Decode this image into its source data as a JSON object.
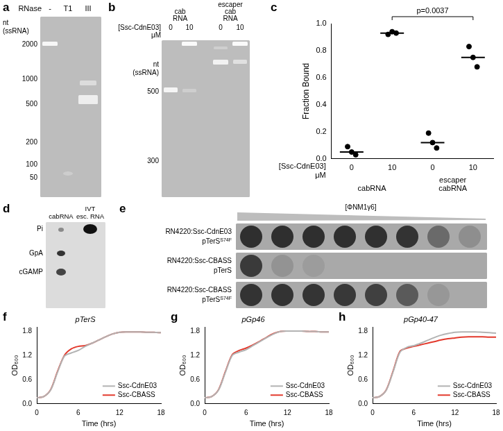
{
  "figure": {
    "a": {
      "panel_label": "a",
      "header": "RNase",
      "lanes": [
        "-",
        "T1",
        "III"
      ],
      "size_label": [
        "nt",
        "(ssRNA)"
      ],
      "markers": [
        2000,
        1000,
        500,
        200,
        100,
        50
      ]
    },
    "b": {
      "panel_label": "b",
      "conc_label": [
        "[Ssc-CdnE03]",
        "μM"
      ],
      "groups": [
        {
          "label": [
            "cab",
            "RNA"
          ],
          "lanes": [
            0,
            10
          ]
        },
        {
          "label": [
            "escaper",
            "cab",
            "RNA"
          ],
          "lanes": [
            0,
            10
          ]
        }
      ],
      "size_label": [
        "nt",
        "(ssRNA)"
      ],
      "markers": [
        500,
        300
      ]
    },
    "d": {
      "panel_label": "d",
      "lanes": [
        [
          "cabRNA"
        ],
        [
          "IVT",
          "esc. RNA"
        ]
      ],
      "spots": [
        "Pi",
        "GpA",
        "cGAMP"
      ]
    },
    "e": {
      "panel_label": "e",
      "phage_label": "[ΦNM1γ6]",
      "rows": [
        {
          "strain": "RN4220:Ssc-CdnE03",
          "plasmid": "pTerS",
          "mutation": "S74F"
        },
        {
          "strain": "RN4220:Ssc-CBASS",
          "plasmid": "pTerS"
        },
        {
          "strain": "RN4220:Ssc-CBASS",
          "plasmid": "pTerS",
          "mutation": "S74F"
        }
      ]
    }
  },
  "chart_data": [
    {
      "panel_label": "c",
      "type": "scatter",
      "y_label": "Fraction Bound",
      "x_label": [
        "[Ssc-CdnE03]",
        "μM"
      ],
      "categories": [
        "0",
        "10",
        "0",
        "10"
      ],
      "category_groups": [
        "cabRNA",
        "escaper cabRNA"
      ],
      "values": [
        [
          0.09,
          0.05,
          0.03
        ],
        [
          0.92,
          0.94,
          0.93
        ],
        [
          0.19,
          0.12,
          0.08
        ],
        [
          0.83,
          0.75,
          0.68
        ]
      ],
      "medians": [
        0.05,
        0.93,
        0.12,
        0.75
      ],
      "color": "#000000",
      "marker": "circle",
      "annotations": [
        "p=0.0037"
      ],
      "ylim": [
        0,
        1
      ],
      "yticks": [
        {
          "value": 0,
          "label": "0.0"
        },
        0.2,
        0.4,
        0.6,
        0.8,
        {
          "value": 1,
          "label": "1.0"
        }
      ],
      "grid": false
    },
    {
      "panel_label": "f",
      "type": "line",
      "title": "pTerS",
      "x_label": "Time (hrs)",
      "y_label": "OD₆₀₀",
      "x": [
        0,
        1,
        2,
        3,
        4,
        5,
        6,
        7,
        8,
        9,
        10,
        11,
        12,
        13,
        14,
        15,
        16,
        17,
        18
      ],
      "series": [
        {
          "name": "Ssc-CdnE03",
          "color": "#b3b3b3",
          "values": [
            0.15,
            0.18,
            0.34,
            0.78,
            1.18,
            1.26,
            1.32,
            1.42,
            1.5,
            1.58,
            1.66,
            1.73,
            1.77,
            1.78,
            1.78,
            1.78,
            1.77,
            1.77,
            1.76
          ]
        },
        {
          "name": "Ssc-CBASS",
          "color": "#e3392c",
          "values": [
            0.15,
            0.18,
            0.35,
            0.8,
            1.2,
            1.36,
            1.42,
            1.44,
            1.5,
            1.58,
            1.66,
            1.73,
            1.77,
            1.78,
            1.78,
            1.78,
            1.77,
            1.77,
            1.76
          ]
        }
      ],
      "xlim": [
        0,
        18
      ],
      "xticks": [
        0,
        6,
        12,
        18
      ],
      "ylim": [
        0,
        1.9
      ],
      "yticks": [
        {
          "value": 0,
          "label": "0.0"
        },
        0.6,
        1.2,
        1.8
      ],
      "legend": "lower right",
      "grid": false
    },
    {
      "panel_label": "g",
      "type": "line",
      "title": "pGp46",
      "x_label": "Time (hrs)",
      "y_label": "OD₆₀₀",
      "x": [
        0,
        1,
        2,
        3,
        4,
        5,
        6,
        7,
        8,
        9,
        10,
        11,
        12,
        13,
        14,
        15,
        16,
        17,
        18
      ],
      "series": [
        {
          "name": "Ssc-CdnE03",
          "color": "#b3b3b3",
          "values": [
            0.15,
            0.18,
            0.34,
            0.78,
            1.2,
            1.28,
            1.34,
            1.44,
            1.54,
            1.64,
            1.73,
            1.79,
            1.8,
            1.8,
            1.8,
            1.79,
            1.79,
            1.78,
            1.78
          ]
        },
        {
          "name": "Ssc-CBASS",
          "color": "#e3392c",
          "values": [
            0.15,
            0.18,
            0.35,
            0.8,
            1.22,
            1.32,
            1.38,
            1.46,
            1.55,
            1.65,
            1.74,
            1.79,
            1.8,
            1.8,
            1.8,
            1.79,
            1.79,
            1.78,
            1.78
          ]
        }
      ],
      "xlim": [
        0,
        18
      ],
      "xticks": [
        0,
        6,
        12,
        18
      ],
      "ylim": [
        0,
        1.9
      ],
      "yticks": [
        {
          "value": 0,
          "label": "0.0"
        },
        0.6,
        1.2,
        1.8
      ],
      "legend": "lower right",
      "grid": false
    },
    {
      "panel_label": "h",
      "type": "line",
      "title": "pGp40-47",
      "x_label": "Time (hrs)",
      "y_label": "OD₆₀₀",
      "x": [
        0,
        1,
        2,
        3,
        4,
        5,
        6,
        7,
        8,
        9,
        10,
        11,
        12,
        13,
        14,
        15,
        16,
        17,
        18
      ],
      "series": [
        {
          "name": "Ssc-CdnE03",
          "color": "#b3b3b3",
          "values": [
            0.15,
            0.18,
            0.34,
            0.8,
            1.28,
            1.4,
            1.44,
            1.5,
            1.57,
            1.64,
            1.7,
            1.74,
            1.77,
            1.78,
            1.78,
            1.78,
            1.77,
            1.76,
            1.75
          ]
        },
        {
          "name": "Ssc-CBASS",
          "color": "#e3392c",
          "values": [
            0.15,
            0.18,
            0.35,
            0.82,
            1.3,
            1.38,
            1.42,
            1.46,
            1.5,
            1.54,
            1.58,
            1.61,
            1.63,
            1.65,
            1.66,
            1.66,
            1.66,
            1.65,
            1.65
          ]
        }
      ],
      "xlim": [
        0,
        18
      ],
      "xticks": [
        0,
        6,
        12,
        18
      ],
      "ylim": [
        0,
        1.9
      ],
      "yticks": [
        {
          "value": 0,
          "label": "0.0"
        },
        0.6,
        1.2,
        1.8
      ],
      "legend": "lower right",
      "grid": false
    }
  ]
}
